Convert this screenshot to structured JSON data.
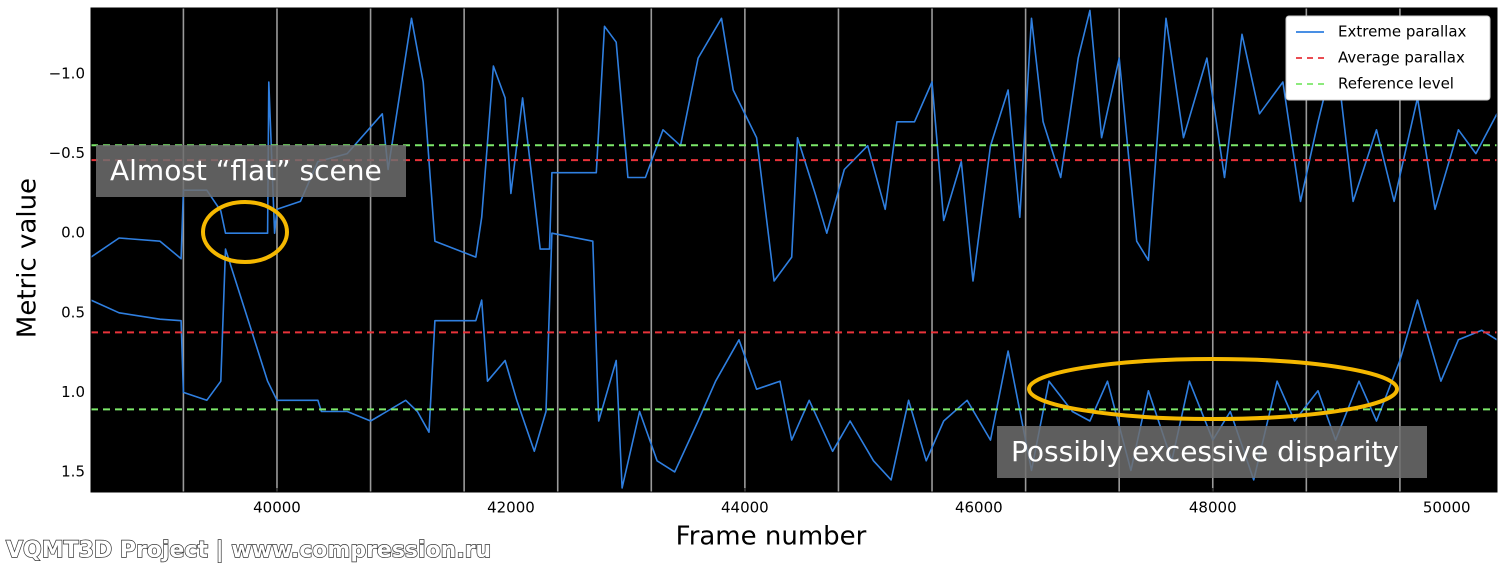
{
  "chart_data": {
    "type": "line",
    "xlabel": "Frame number",
    "ylabel": "Metric value",
    "xlim": [
      38410,
      50430
    ],
    "ylim": [
      -1.415,
      1.626
    ],
    "y_inverted": true,
    "xticks": [
      40000,
      42000,
      44000,
      46000,
      48000,
      50000
    ],
    "yticks": [
      {
        "value": -1.0,
        "label": "−1.0"
      },
      {
        "value": -0.5,
        "label": "−0.5"
      },
      {
        "value": 0.0,
        "label": "0.0"
      },
      {
        "value": 0.5,
        "label": "0.5"
      },
      {
        "value": 1.0,
        "label": "1.0"
      },
      {
        "value": 1.5,
        "label": "1.5"
      }
    ],
    "x_markers": [
      39200,
      40000,
      40800,
      41600,
      42400,
      43200,
      44000,
      44800,
      45600,
      46400,
      47200,
      48000,
      48800,
      49600
    ],
    "legend": "upper right",
    "series": [
      {
        "name": "Extreme parallax",
        "color": "#2f7fe0",
        "style": "solid",
        "x": [
          38410,
          38650,
          39000,
          39180,
          39200,
          39400,
          39520,
          39560,
          39920,
          39930,
          39980,
          40000,
          40200,
          40350,
          40600,
          40900,
          40950,
          41150,
          41250,
          41350,
          41700,
          41750,
          41850,
          41950,
          42000,
          42100,
          42250,
          42330,
          42350,
          42730,
          42800,
          42900,
          43000,
          43150,
          43300,
          43450,
          43600,
          43800,
          43900,
          44100,
          44250,
          44400,
          44450,
          44600,
          44700,
          44850,
          45050,
          45200,
          45300,
          45450,
          45600,
          45700,
          45850,
          45950,
          46100,
          46250,
          46350,
          46450,
          46550,
          46700,
          46850,
          46950,
          47050,
          47200,
          47350,
          47450,
          47600,
          47750,
          47950,
          48100,
          48250,
          48400,
          48600,
          48750,
          48900,
          49050,
          49200,
          49400,
          49550,
          49750,
          49900,
          50100,
          50250,
          50430,
          null,
          38410,
          38650,
          39000,
          39180,
          39200,
          39400,
          39520,
          39560,
          39920,
          40000,
          40350,
          40380,
          40600,
          40800,
          41100,
          41200,
          41300,
          41350,
          41700,
          41750,
          41800,
          41950,
          42050,
          42200,
          42300,
          42350,
          42700,
          42750,
          42900,
          42950,
          43100,
          43250,
          43400,
          43600,
          43750,
          43950,
          44100,
          44300,
          44400,
          44550,
          44750,
          44900,
          45100,
          45250,
          45400,
          45550,
          45700,
          45900,
          46100,
          46250,
          46450,
          46600,
          46800,
          46950,
          47100,
          47300,
          47450,
          47650,
          47800,
          48000,
          48150,
          48350,
          48550,
          48700,
          48900,
          49050,
          49250,
          49400,
          49600,
          49750,
          49950,
          50100,
          50300,
          50430
        ],
        "values": [
          0.15,
          0.03,
          0.05,
          0.16,
          -0.27,
          -0.27,
          -0.14,
          0.0,
          0.0,
          -0.95,
          0.0,
          -0.15,
          -0.2,
          -0.45,
          -0.5,
          -0.75,
          -0.4,
          -1.35,
          -0.95,
          0.05,
          0.15,
          -0.1,
          -1.05,
          -0.85,
          -0.25,
          -0.85,
          0.1,
          0.1,
          -0.38,
          -0.38,
          -1.3,
          -1.2,
          -0.35,
          -0.35,
          -0.65,
          -0.55,
          -1.1,
          -1.35,
          -0.9,
          -0.6,
          0.3,
          0.15,
          -0.6,
          -0.25,
          0.0,
          -0.4,
          -0.55,
          -0.15,
          -0.7,
          -0.7,
          -0.95,
          -0.08,
          -0.45,
          0.3,
          -0.55,
          -0.9,
          -0.1,
          -1.35,
          -0.7,
          -0.35,
          -1.1,
          -1.4,
          -0.6,
          -1.1,
          0.05,
          0.17,
          -1.35,
          -0.6,
          -1.1,
          -0.35,
          -1.25,
          -0.75,
          -0.95,
          -0.2,
          -0.7,
          -1.15,
          -0.2,
          -0.65,
          -0.2,
          -0.85,
          -0.15,
          -0.65,
          -0.5,
          -0.75,
          null,
          0.42,
          0.5,
          0.54,
          0.55,
          1.0,
          1.05,
          0.93,
          0.1,
          0.93,
          1.05,
          1.05,
          1.12,
          1.12,
          1.18,
          1.05,
          1.12,
          1.25,
          0.55,
          0.55,
          0.42,
          0.93,
          0.8,
          1.05,
          1.37,
          1.12,
          0.0,
          0.05,
          1.18,
          0.8,
          1.6,
          1.12,
          1.43,
          1.5,
          1.18,
          0.93,
          0.67,
          0.98,
          0.93,
          1.3,
          1.05,
          1.37,
          1.18,
          1.43,
          1.55,
          1.05,
          1.43,
          1.18,
          1.05,
          1.3,
          0.74,
          1.49,
          0.93,
          1.12,
          1.18,
          0.93,
          1.49,
          0.99,
          1.43,
          0.93,
          1.3,
          1.12,
          1.55,
          0.93,
          1.18,
          0.99,
          1.3,
          0.93,
          1.18,
          0.8,
          0.42,
          0.93,
          0.67,
          0.61,
          0.67
        ]
      },
      {
        "name": "Average parallax",
        "color": "#e8333a",
        "style": "dashed",
        "levels": [
          -0.459,
          0.623
        ]
      },
      {
        "name": "Reference level",
        "color": "#7ce86a",
        "style": "dashed",
        "levels": [
          -0.553,
          1.107
        ]
      }
    ],
    "annotations": [
      "Almost “flat” scene",
      "Possibly excessive disparity"
    ],
    "watermark": "VQMT3D Project | www.compression.ru"
  }
}
